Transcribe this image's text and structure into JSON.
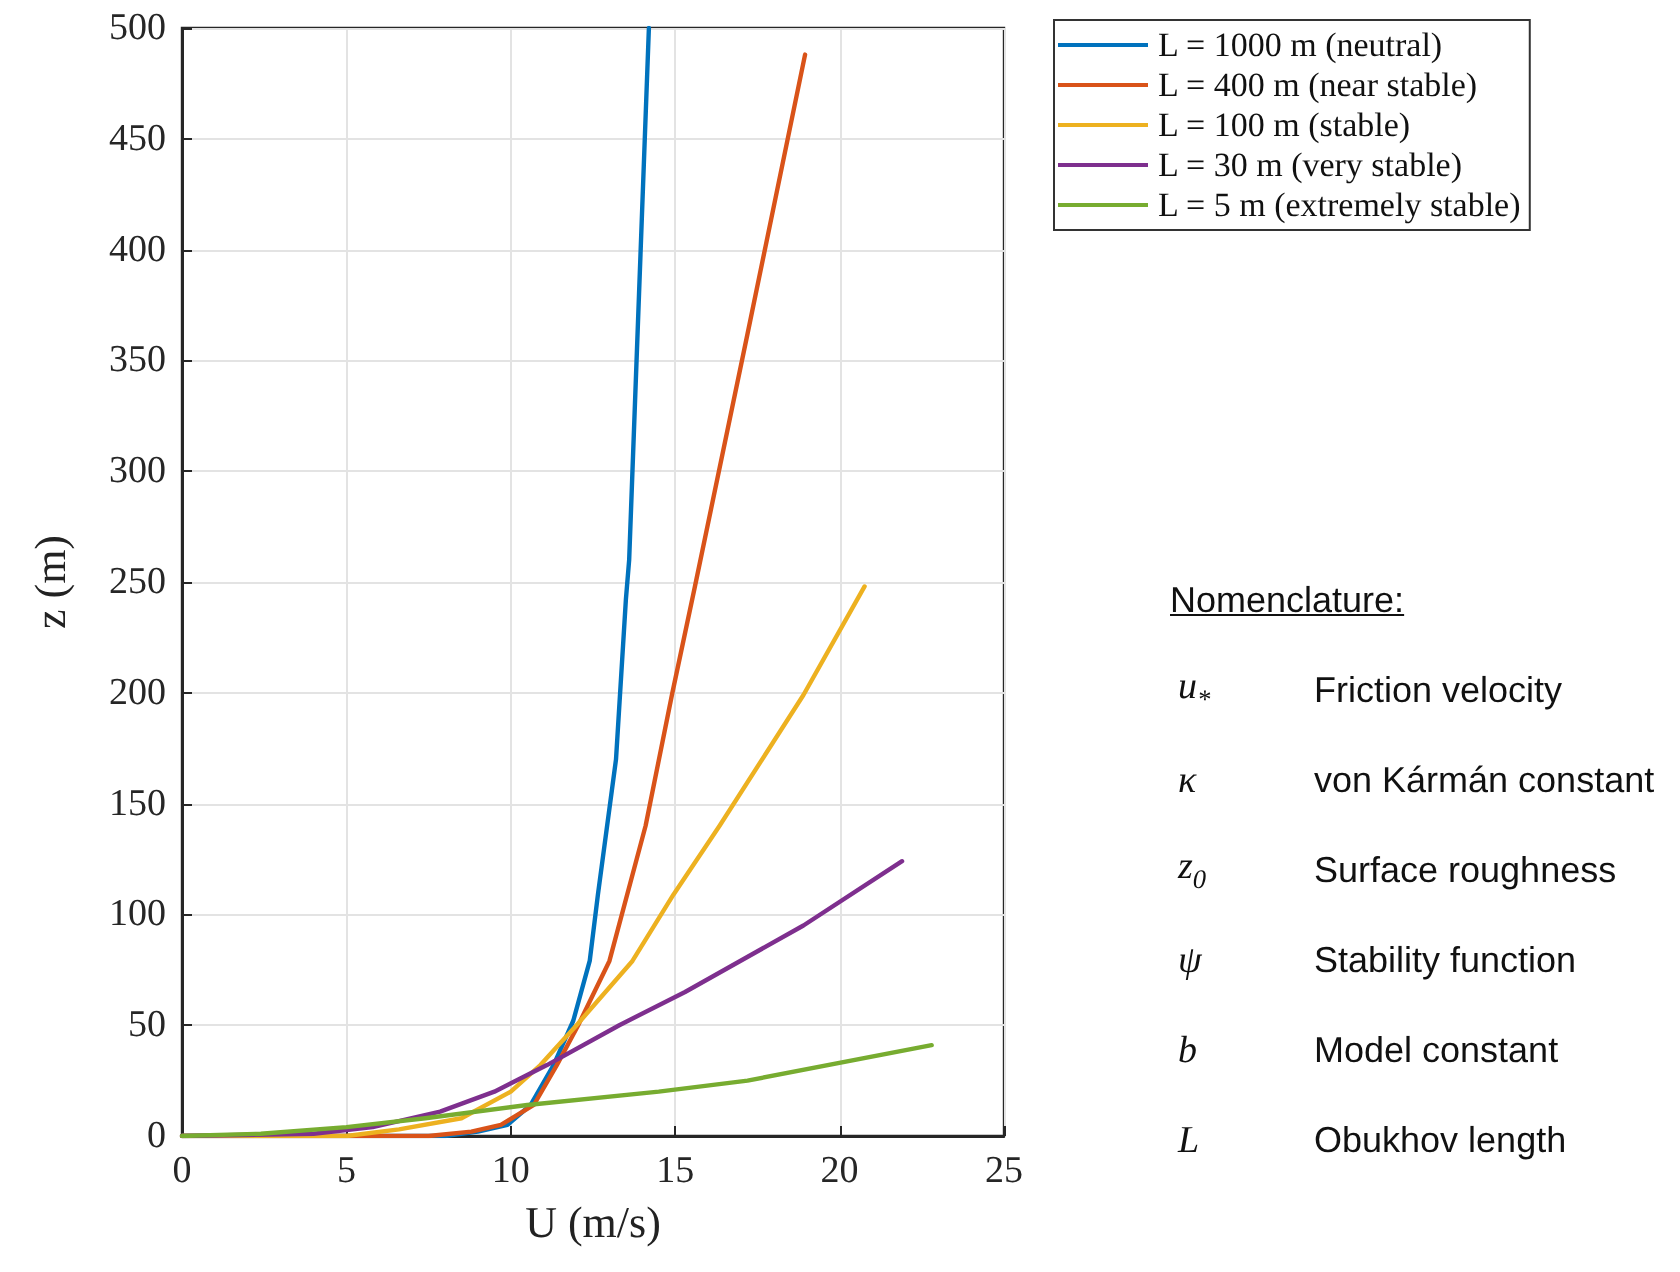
{
  "chart_data": {
    "type": "line",
    "xlabel": "U (m/s)",
    "ylabel": "z (m)",
    "xlim": [
      0,
      25
    ],
    "xticks": [
      0,
      5,
      10,
      15,
      20,
      25
    ],
    "ylim": [
      0,
      500
    ],
    "yticks": [
      0,
      50,
      100,
      150,
      200,
      250,
      300,
      350,
      400,
      450,
      500
    ],
    "grid": true,
    "legend": "top right",
    "marker": "none",
    "line_style": "solid",
    "series": [
      {
        "name": "L = 1000 m (neutral)",
        "color": "#0072bd",
        "x": [
          0,
          8,
          9,
          9.9,
          10.6,
          11.3,
          11.9,
          12.4,
          12.65,
          13.2,
          13.5,
          13.6,
          13.9,
          14.2
        ],
        "values": [
          0,
          0,
          2,
          5,
          14,
          32,
          52,
          79,
          109,
          170,
          242,
          260,
          380,
          500
        ]
      },
      {
        "name": "L = 400 m (near stable)",
        "color": "#d95319",
        "x": [
          0,
          7.5,
          8.8,
          9.7,
          10.7,
          11.4,
          12.05,
          13.0,
          14.1,
          14.9,
          15.6,
          17.2,
          18.95
        ],
        "values": [
          0,
          0,
          2,
          5,
          14,
          32,
          50,
          79,
          140,
          199,
          248,
          362,
          488
        ]
      },
      {
        "name": "L = 100 m (stable)",
        "color": "#edb120",
        "x": [
          0,
          5,
          6.6,
          8.5,
          10.0,
          10.9,
          12.0,
          13.7,
          14.95,
          16.35,
          18.9,
          20.76
        ],
        "values": [
          0,
          0,
          3,
          8,
          20,
          32,
          50,
          79,
          109,
          140,
          199,
          248
        ]
      },
      {
        "name": "L = 30 m (very stable)",
        "color": "#7e2f8e",
        "x": [
          0,
          4,
          5.8,
          7.85,
          9.5,
          11.1,
          13.3,
          15.3,
          18.9,
          21.9
        ],
        "values": [
          0,
          1,
          4,
          11,
          20,
          32,
          50,
          65,
          95,
          124
        ]
      },
      {
        "name": "L = 5 m (extremely stable)",
        "color": "#77ac30",
        "x": [
          0,
          2.4,
          5.0,
          7.4,
          10.5,
          14.5,
          17.2,
          22.8
        ],
        "values": [
          0,
          1,
          4,
          8,
          14,
          20,
          25,
          41
        ]
      }
    ],
    "annotations": [
      "Nomenclature:",
      "u$_{*}$",
      "Friction velocity",
      "κ",
      "von Kármán constant",
      "z$_{0}$",
      "Surface roughness",
      "ψ",
      "Stability function",
      "b",
      "Model constant",
      "L",
      "Obukhov length"
    ]
  }
}
